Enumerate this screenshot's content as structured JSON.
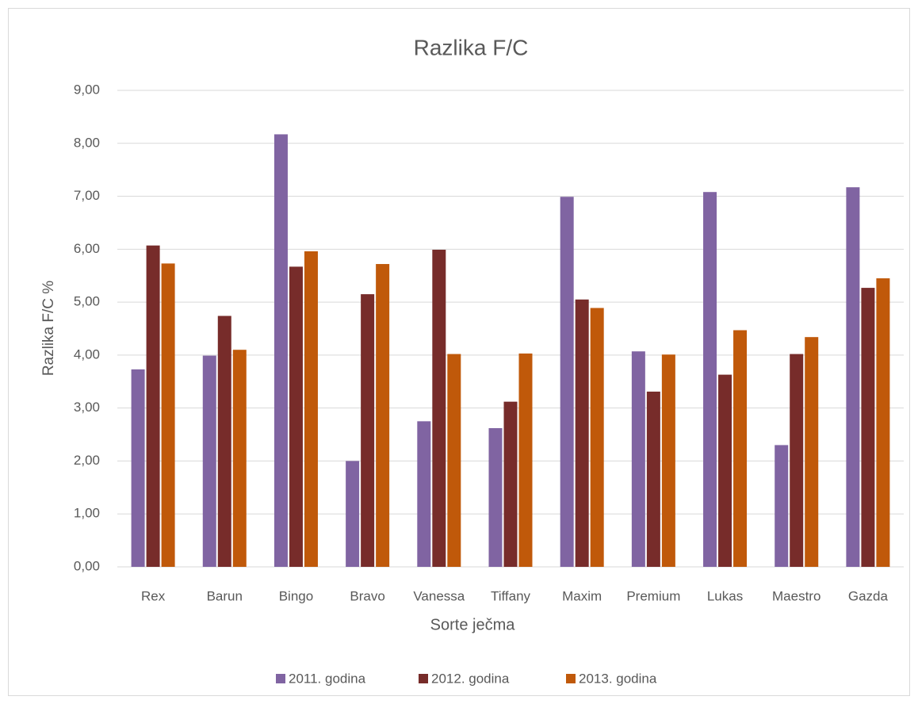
{
  "chart_data": {
    "type": "bar",
    "title": "Razlika F/C",
    "x_label": "Sorte ječma",
    "y_label": "Razlika F/C %",
    "categories": [
      "Rex",
      "Barun",
      "Bingo",
      "Bravo",
      "Vanessa",
      "Tiffany",
      "Maxim",
      "Premium",
      "Lukas",
      "Maestro",
      "Gazda"
    ],
    "series": [
      {
        "name": "2011. godina",
        "color": "#8064a2",
        "values": [
          3.73,
          3.99,
          8.17,
          2.0,
          2.75,
          2.62,
          6.99,
          4.07,
          7.08,
          2.3,
          7.17
        ]
      },
      {
        "name": "2012. godina",
        "color": "#772c2a",
        "values": [
          6.07,
          4.74,
          5.67,
          5.15,
          5.99,
          3.12,
          5.05,
          3.31,
          3.63,
          4.02,
          5.27
        ]
      },
      {
        "name": "2013. godina",
        "color": "#c0590a",
        "values": [
          5.73,
          4.1,
          5.96,
          5.72,
          4.02,
          4.03,
          4.89,
          4.01,
          4.47,
          4.34,
          5.45
        ]
      }
    ],
    "ylim": [
      0,
      9
    ],
    "yticks": [
      {
        "value": 0,
        "label": "0,00"
      },
      {
        "value": 1,
        "label": "1,00"
      },
      {
        "value": 2,
        "label": "2,00"
      },
      {
        "value": 3,
        "label": "3,00"
      },
      {
        "value": 4,
        "label": "4,00"
      },
      {
        "value": 5,
        "label": "5,00"
      },
      {
        "value": 6,
        "label": "6,00"
      },
      {
        "value": 7,
        "label": "7,00"
      },
      {
        "value": 8,
        "label": "8,00"
      },
      {
        "value": 9,
        "label": "9,00"
      }
    ],
    "grid": true,
    "legend": "bottom"
  }
}
